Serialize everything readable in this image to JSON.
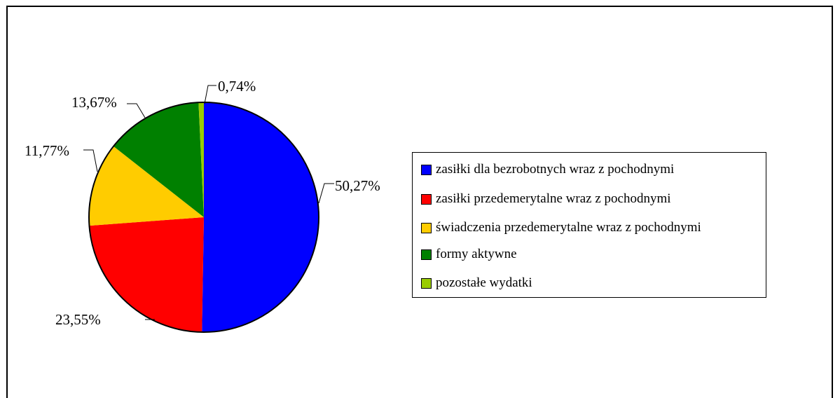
{
  "chart_data": {
    "type": "pie",
    "title": "",
    "slices": [
      {
        "label": "zasiłki dla bezrobotnych wraz z pochodnymi",
        "value": 50.27,
        "value_label": "50,27%",
        "color": "#0000FF"
      },
      {
        "label": "zasiłki przedemerytalne wraz z pochodnymi",
        "value": 23.55,
        "value_label": "23,55%",
        "color": "#FF0000"
      },
      {
        "label": "świadczenia przedemerytalne wraz z pochodnymi",
        "value": 11.77,
        "value_label": "11,77%",
        "color": "#FFCC00"
      },
      {
        "label": "formy aktywne",
        "value": 13.67,
        "value_label": "13,67%",
        "color": "#008000"
      },
      {
        "label": "pozostałe wydatki",
        "value": 0.74,
        "value_label": "0,74%",
        "color": "#99CC00"
      }
    ],
    "legend_position": "right"
  }
}
